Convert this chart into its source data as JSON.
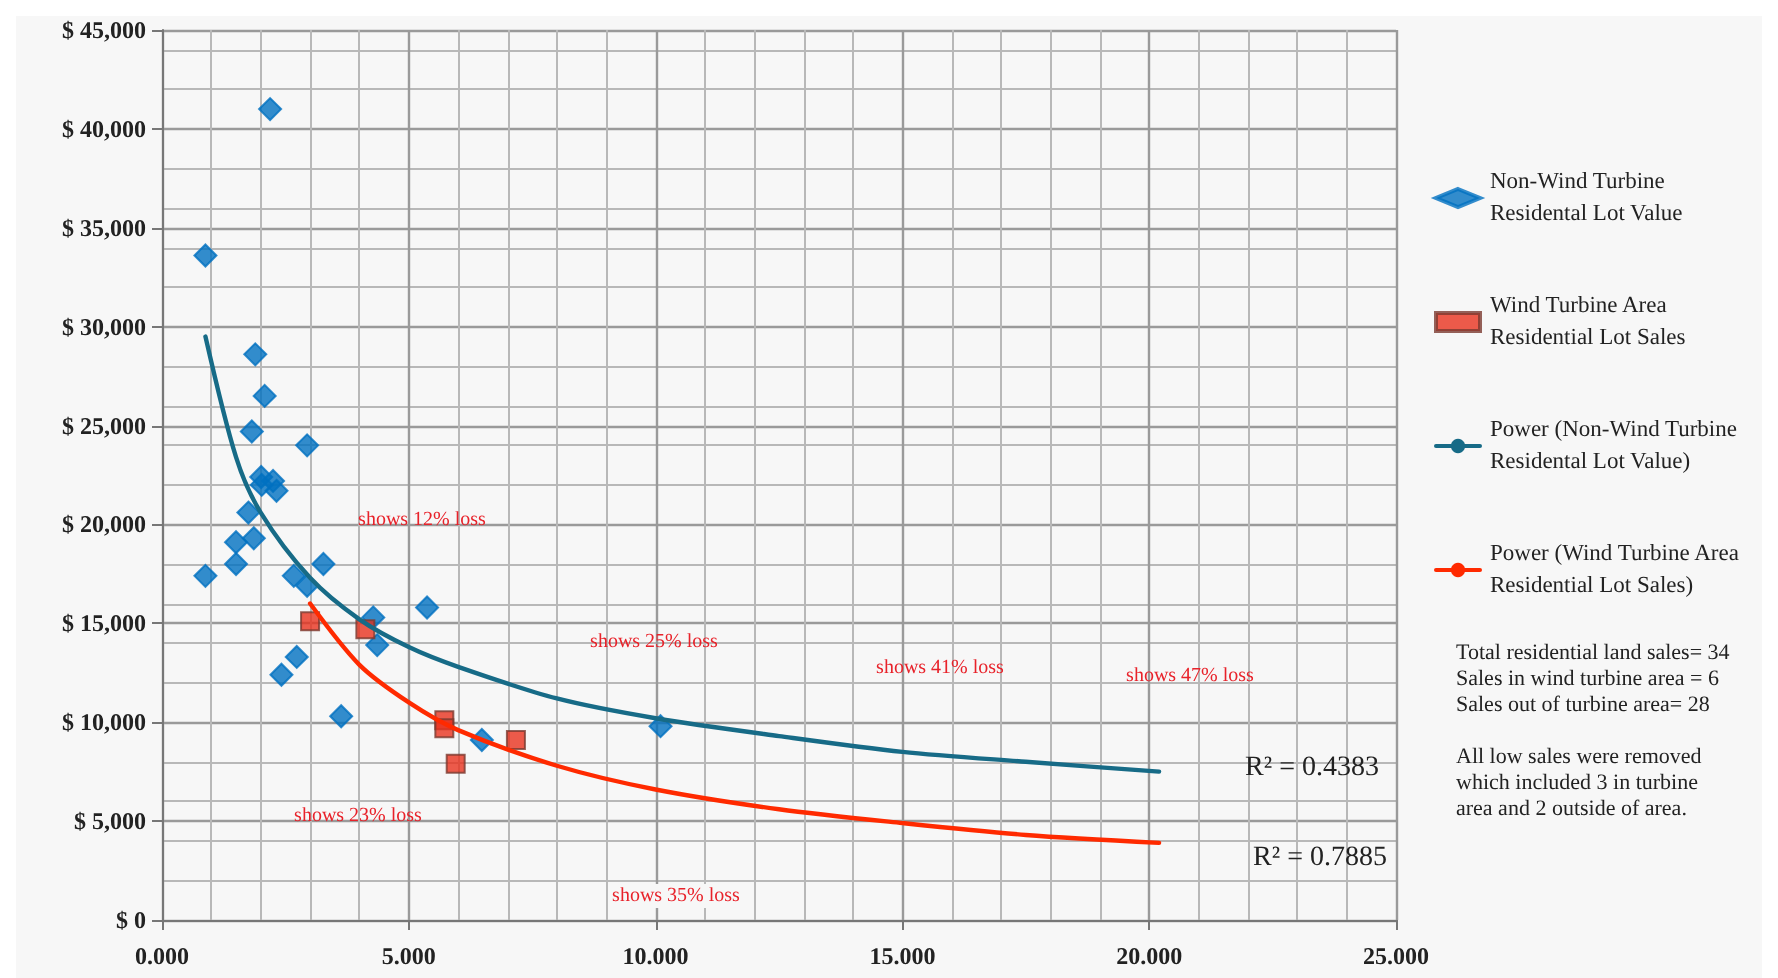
{
  "chart_data": {
    "type": "scatter",
    "xlim": [
      0,
      25
    ],
    "xticks": [
      {
        "value": 0,
        "label": "0.000"
      },
      {
        "value": 5,
        "label": "5.000"
      },
      {
        "value": 10,
        "label": "10.000"
      },
      {
        "value": 15,
        "label": "15.000"
      },
      {
        "value": 20,
        "label": "20.000"
      },
      {
        "value": 25,
        "label": "25.000"
      }
    ],
    "ylim": [
      0,
      45000
    ],
    "yticks": [
      {
        "value": 0,
        "label": "$ 0"
      },
      {
        "value": 5000,
        "label": "$ 5,000"
      },
      {
        "value": 10000,
        "label": "$ 10,000"
      },
      {
        "value": 15000,
        "label": "$ 15,000"
      },
      {
        "value": 20000,
        "label": "$ 20,000"
      },
      {
        "value": 25000,
        "label": "$ 25,000"
      },
      {
        "value": 30000,
        "label": "$ 30,000"
      },
      {
        "value": 35000,
        "label": "$ 35,000"
      },
      {
        "value": 40000,
        "label": "$ 40,000"
      },
      {
        "value": 45000,
        "label": "$ 45,000"
      }
    ],
    "grid": true,
    "legend": "right",
    "series": [
      {
        "name": "Non-Wind Turbine\nResidental Lot Value",
        "type": "scatter",
        "marker": "diamond",
        "color": "#0070c0",
        "x": [
          0.88,
          2.19,
          1.89,
          2.08,
          1.82,
          2.94,
          2.01,
          2.25,
          2.02,
          2.32,
          1.75,
          1.5,
          1.86,
          1.5,
          0.88,
          2.67,
          2.94,
          3.27,
          4.28,
          4.36,
          5.37,
          2.73,
          2.42,
          3.63,
          6.48,
          10.1
        ],
        "values": [
          33600,
          41000,
          28600,
          26500,
          24700,
          24000,
          22400,
          22200,
          22000,
          21700,
          20600,
          19100,
          19300,
          18000,
          17400,
          17400,
          16900,
          18000,
          15300,
          13900,
          15800,
          13300,
          12400,
          10300,
          9100,
          9800
        ]
      },
      {
        "name": "Wind Turbine Area\nResidential Lot Sales",
        "type": "scatter",
        "marker": "square",
        "color": "#e8321e",
        "x": [
          3.0,
          4.12,
          5.72,
          5.72,
          5.95,
          7.17
        ],
        "values": [
          15100,
          14700,
          10100,
          9700,
          7900,
          9100
        ]
      },
      {
        "name": "Power (Non-Wind Turbine\nResidental Lot Value)",
        "type": "line",
        "marker": "none",
        "color": "#176b87",
        "x": [
          0.88,
          1.5,
          2,
          3,
          4,
          5,
          6,
          8,
          10,
          12.5,
          15,
          17.5,
          20.2
        ],
        "values": [
          29500,
          23400,
          20600,
          17300,
          15200,
          13800,
          12800,
          11200,
          10200,
          9300,
          8500,
          8000,
          7500
        ]
      },
      {
        "name": "Power (Wind Turbine Area\nResidential Lot Sales)",
        "type": "line",
        "marker": "none",
        "color": "#ff2a00",
        "x": [
          3,
          4,
          5,
          6,
          8,
          10,
          12.5,
          15,
          17.5,
          20.2
        ],
        "values": [
          16000,
          12900,
          11000,
          9600,
          7800,
          6600,
          5600,
          4900,
          4300,
          3900
        ]
      }
    ],
    "annotations": [
      "shows 12% loss",
      "shows 23% loss",
      "shows 25% loss",
      "shows 35% loss",
      "shows 41% loss",
      "shows 47% loss",
      "R² = 0.4383",
      "R² = 0.7885",
      "Total residential land sales= 34\nSales in wind turbine area = 6\nSales out of turbine area= 28",
      "All low sales were removed\nwhich included 3 in turbine\narea and 2 outside of area."
    ]
  }
}
